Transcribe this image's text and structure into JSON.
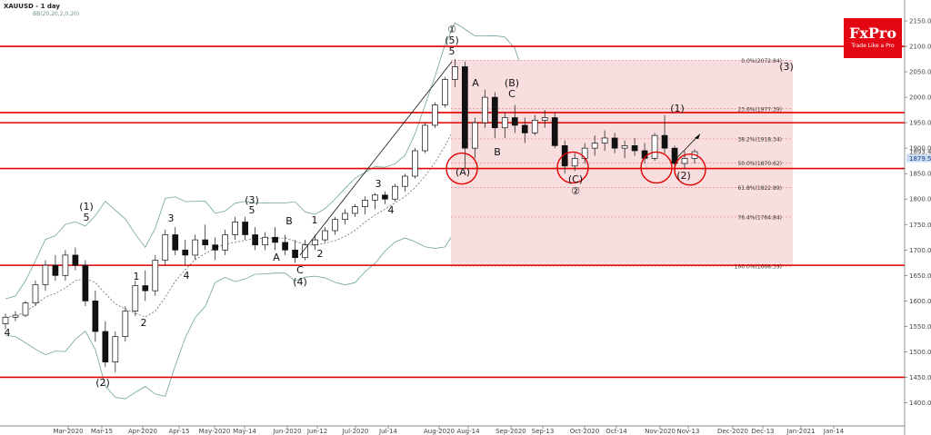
{
  "header": {
    "symbol": "XAUUSD - 1 day",
    "indicator": "BB(20,20,2,0,20)"
  },
  "logo": {
    "brand": "FxPro",
    "tagline": "Trade Like a Pro"
  },
  "price_labels": {
    "current": "1893.47",
    "bid": "1879.55"
  },
  "chart_data": {
    "type": "candlestick",
    "title": "XAUUSD - 1 day",
    "xlabel": "",
    "ylabel": "",
    "y_ticks": [
      "2150.00",
      "2100.00",
      "2050.00",
      "2000.00",
      "1950.00",
      "1900.00",
      "1850.00",
      "1800.00",
      "1750.00",
      "1700.00",
      "1650.00",
      "1600.00",
      "1550.00",
      "1500.00",
      "1450.00",
      "1400.00"
    ],
    "y_tick_values": [
      2150,
      2100,
      2050,
      2000,
      1950,
      1900,
      1850,
      1800,
      1750,
      1700,
      1650,
      1600,
      1550,
      1500,
      1450,
      1400
    ],
    "x_ticks": [
      "Mar-2020",
      "Mar-15",
      "Apr-2020",
      "Apr-15",
      "May-2020",
      "May-14",
      "Jun-2020",
      "Jun-12",
      "Jul-2020",
      "Jul-14",
      "Aug-2020",
      "Aug-14",
      "Sep-2020",
      "Sep-13",
      "Oct-2020",
      "Oct-14",
      "Nov-2020",
      "Nov-13",
      "Dec-2020",
      "Dec-13",
      "Jan-2021",
      "Jan-14"
    ],
    "horizontal_levels": [
      2100,
      1970,
      1950,
      1860,
      1670,
      1450
    ],
    "fibonacci": [
      {
        "label": "0.0%(2072.84)",
        "value": 2072.84
      },
      {
        "label": "23.6%(1977.39)",
        "value": 1977.39
      },
      {
        "label": "38.2%(1918.34)",
        "value": 1918.34
      },
      {
        "label": "50.0%(1870.62)",
        "value": 1870.62
      },
      {
        "label": "61.8%(1822.89)",
        "value": 1822.89
      },
      {
        "label": "76.4%(1764.84)",
        "value": 1764.84
      },
      {
        "label": "100.0%(1668.39)",
        "value": 1668.39
      }
    ],
    "series": [
      {
        "values": [
          [
            1555,
            1575,
            1545,
            1568
          ],
          [
            1568,
            1580,
            1560,
            1572
          ],
          [
            1572,
            1600,
            1568,
            1596
          ],
          [
            1596,
            1640,
            1590,
            1632
          ],
          [
            1632,
            1680,
            1620,
            1670
          ],
          [
            1670,
            1690,
            1640,
            1650
          ],
          [
            1650,
            1700,
            1640,
            1690
          ],
          [
            1690,
            1705,
            1660,
            1670
          ],
          [
            1670,
            1680,
            1590,
            1600
          ],
          [
            1600,
            1620,
            1520,
            1540
          ],
          [
            1540,
            1560,
            1470,
            1480
          ],
          [
            1480,
            1540,
            1460,
            1530
          ],
          [
            1530,
            1590,
            1520,
            1580
          ],
          [
            1580,
            1640,
            1570,
            1630
          ],
          [
            1630,
            1660,
            1600,
            1620
          ],
          [
            1620,
            1690,
            1610,
            1680
          ],
          [
            1680,
            1740,
            1670,
            1730
          ],
          [
            1730,
            1745,
            1690,
            1700
          ],
          [
            1700,
            1720,
            1670,
            1690
          ],
          [
            1690,
            1730,
            1680,
            1720
          ],
          [
            1720,
            1750,
            1700,
            1710
          ],
          [
            1710,
            1725,
            1680,
            1700
          ],
          [
            1700,
            1740,
            1690,
            1730
          ],
          [
            1730,
            1765,
            1720,
            1755
          ],
          [
            1755,
            1765,
            1720,
            1730
          ],
          [
            1730,
            1745,
            1700,
            1710
          ],
          [
            1710,
            1735,
            1700,
            1725
          ],
          [
            1725,
            1745,
            1700,
            1715
          ],
          [
            1715,
            1730,
            1690,
            1700
          ],
          [
            1700,
            1720,
            1675,
            1685
          ],
          [
            1685,
            1720,
            1680,
            1710
          ],
          [
            1710,
            1730,
            1700,
            1720
          ],
          [
            1720,
            1745,
            1715,
            1738
          ],
          [
            1738,
            1765,
            1730,
            1760
          ],
          [
            1760,
            1780,
            1750,
            1772
          ],
          [
            1772,
            1790,
            1765,
            1785
          ],
          [
            1785,
            1805,
            1770,
            1798
          ],
          [
            1798,
            1812,
            1780,
            1808
          ],
          [
            1808,
            1815,
            1790,
            1800
          ],
          [
            1800,
            1830,
            1795,
            1825
          ],
          [
            1825,
            1850,
            1815,
            1845
          ],
          [
            1845,
            1900,
            1840,
            1895
          ],
          [
            1895,
            1950,
            1890,
            1945
          ],
          [
            1945,
            1990,
            1940,
            1985
          ],
          [
            1985,
            2040,
            1980,
            2035
          ],
          [
            2035,
            2075,
            2020,
            2060
          ],
          [
            2060,
            2070,
            1860,
            1900
          ],
          [
            1900,
            1960,
            1880,
            1950
          ],
          [
            1950,
            2015,
            1940,
            2000
          ],
          [
            2000,
            2010,
            1920,
            1940
          ],
          [
            1940,
            1970,
            1920,
            1960
          ],
          [
            1960,
            1985,
            1930,
            1945
          ],
          [
            1945,
            1960,
            1910,
            1930
          ],
          [
            1930,
            1965,
            1925,
            1955
          ],
          [
            1955,
            1975,
            1940,
            1960
          ],
          [
            1960,
            1970,
            1900,
            1905
          ],
          [
            1905,
            1915,
            1850,
            1865
          ],
          [
            1865,
            1890,
            1855,
            1880
          ],
          [
            1880,
            1910,
            1870,
            1900
          ],
          [
            1900,
            1925,
            1885,
            1910
          ],
          [
            1910,
            1935,
            1895,
            1920
          ],
          [
            1920,
            1930,
            1890,
            1900
          ],
          [
            1900,
            1915,
            1880,
            1905
          ],
          [
            1905,
            1920,
            1885,
            1895
          ],
          [
            1895,
            1910,
            1870,
            1880
          ],
          [
            1880,
            1930,
            1875,
            1925
          ],
          [
            1925,
            1965,
            1890,
            1900
          ],
          [
            1900,
            1905,
            1850,
            1870
          ],
          [
            1870,
            1895,
            1860,
            1880
          ],
          [
            1880,
            1898,
            1870,
            1893
          ]
        ]
      }
    ]
  },
  "wave_labels": [
    "(1)",
    "5",
    "4",
    "1",
    "2",
    "(2)",
    "3",
    "4",
    "(3)",
    "5",
    "B",
    "A",
    "1",
    "C",
    "(4)",
    "2",
    "3",
    "4",
    "①",
    "(5)",
    "5",
    "A",
    "(B)",
    "C",
    "B",
    "(A)",
    "(C)",
    "②",
    "(1)",
    "(2)",
    "(3)"
  ]
}
